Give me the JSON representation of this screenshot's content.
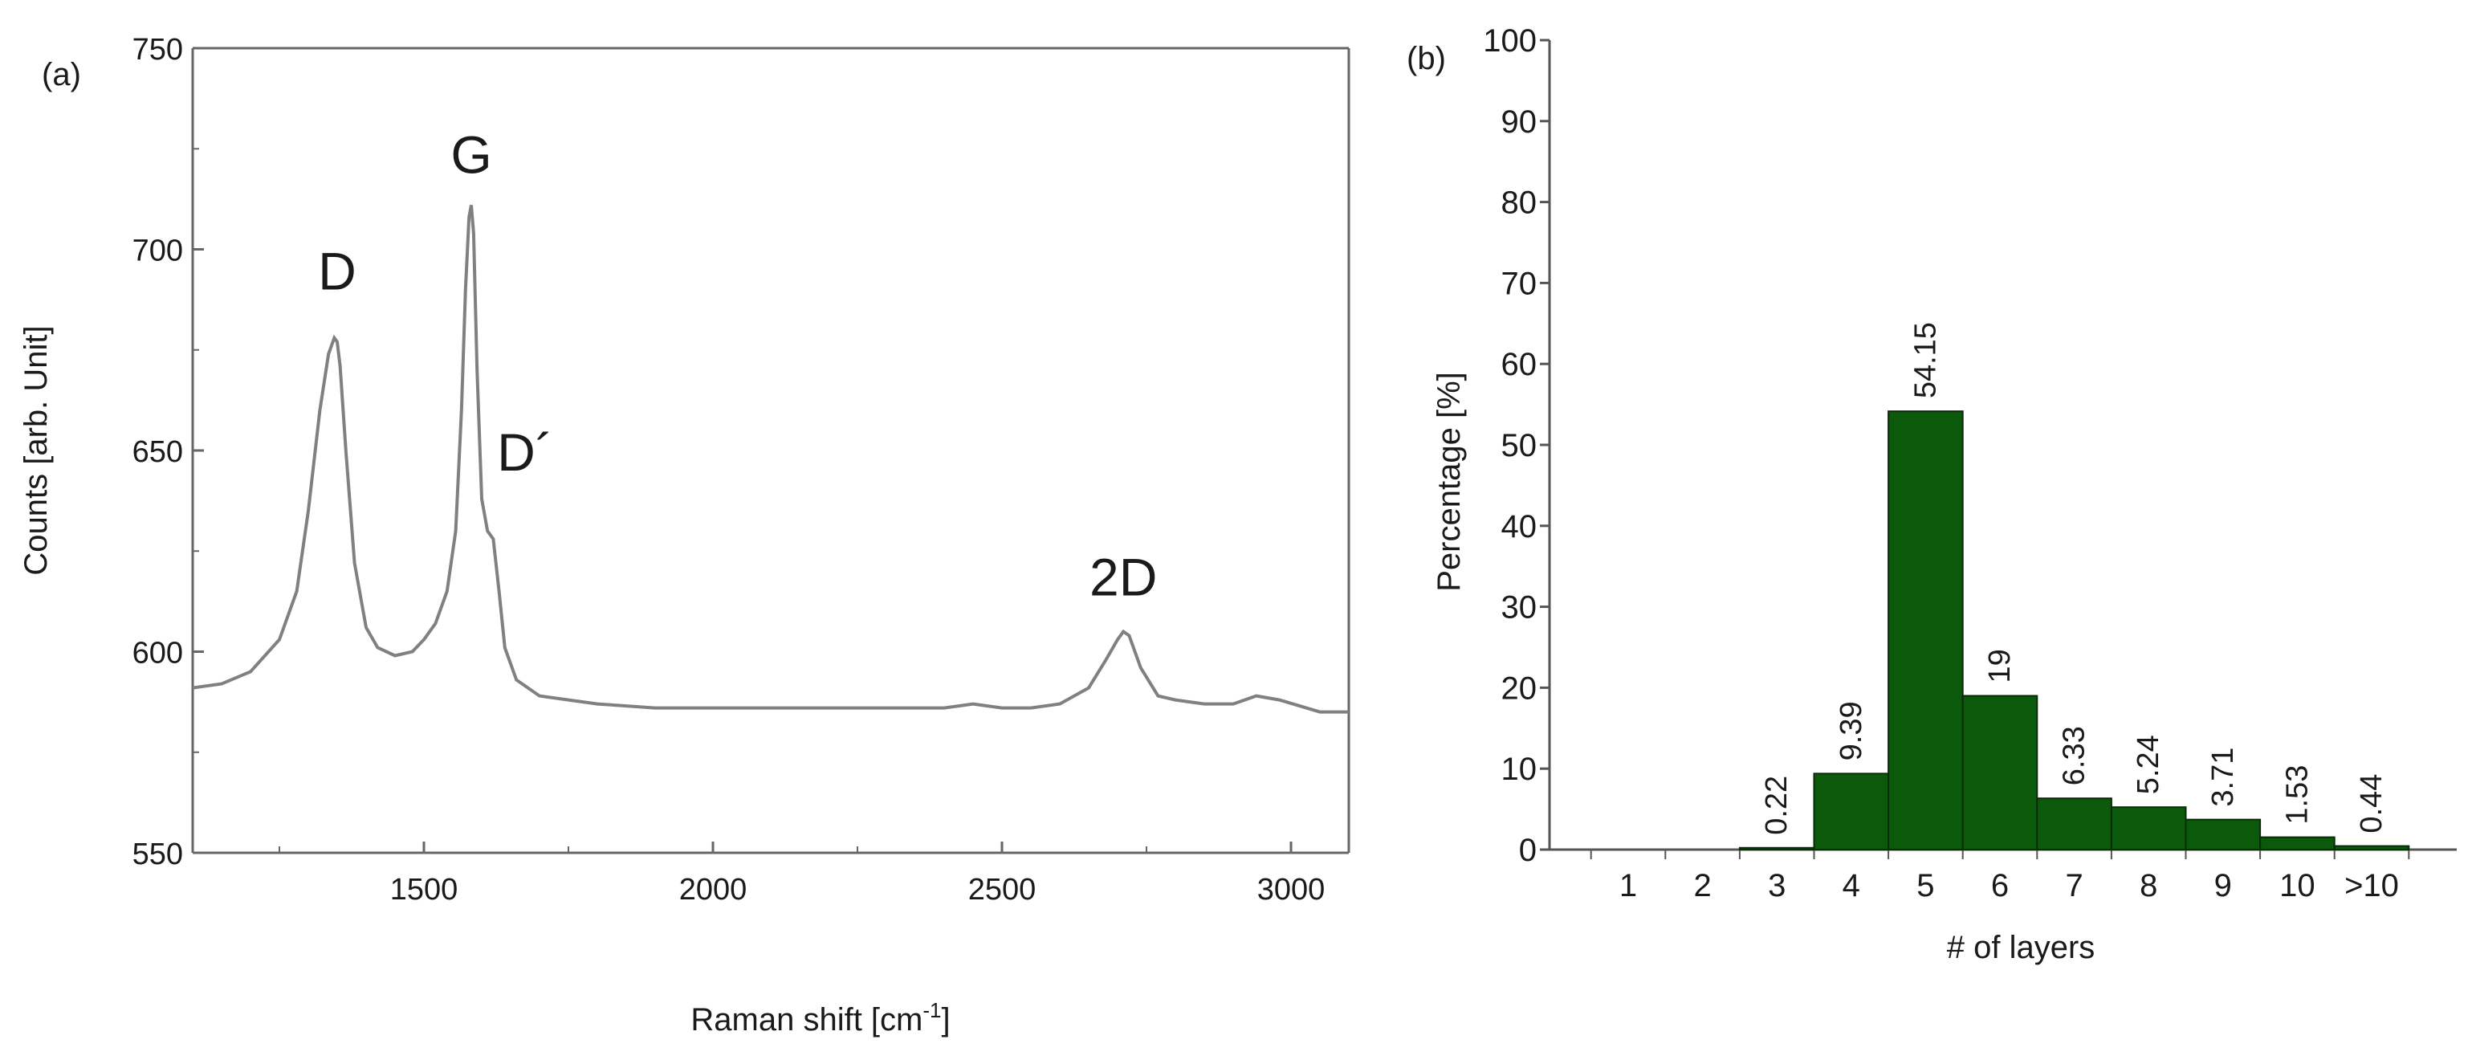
{
  "chart_data": [
    {
      "panel_label": "(a)",
      "type": "line",
      "xlabel": "Raman shift [cm",
      "xlabel_superscript": "-1",
      "xlabel_suffix": "]",
      "ylabel": "Counts [arb. Unit]",
      "xlim": [
        1100,
        3100
      ],
      "ylim": [
        550,
        750
      ],
      "x_ticks": [
        1500,
        2000,
        2500,
        3000
      ],
      "y_ticks": [
        550,
        600,
        650,
        700,
        750
      ],
      "grid": false,
      "line_color": "#808080",
      "series": [
        {
          "x": [
            1100,
            1150,
            1200,
            1250,
            1280,
            1300,
            1320,
            1335,
            1345,
            1350,
            1355,
            1365,
            1380,
            1400,
            1420,
            1450,
            1480,
            1500,
            1520,
            1540,
            1555,
            1565,
            1572,
            1578,
            1582,
            1586,
            1592,
            1600,
            1610,
            1620,
            1630,
            1640,
            1660,
            1700,
            1750,
            1800,
            1900,
            2000,
            2100,
            2200,
            2300,
            2400,
            2450,
            2500,
            2550,
            2600,
            2650,
            2680,
            2700,
            2710,
            2720,
            2740,
            2770,
            2800,
            2850,
            2900,
            2940,
            2980,
            3050,
            3100
          ],
          "y": [
            591,
            592,
            595,
            603,
            615,
            635,
            660,
            674,
            678,
            677,
            671,
            650,
            622,
            606,
            601,
            599,
            600,
            603,
            607,
            615,
            630,
            660,
            690,
            708,
            711,
            704,
            670,
            638,
            630,
            628,
            615,
            601,
            593,
            589,
            588,
            587,
            586,
            586,
            586,
            586,
            586,
            586,
            587,
            586,
            586,
            587,
            591,
            598,
            603,
            605,
            604,
            596,
            589,
            588,
            587,
            587,
            589,
            588,
            585,
            585
          ]
        }
      ],
      "annotations": [
        {
          "text": "D",
          "x": 1350,
          "y": 690
        },
        {
          "text": "G",
          "x": 1582,
          "y": 719
        },
        {
          "text": "D´",
          "x": 1675,
          "y": 645
        },
        {
          "text": "2D",
          "x": 2710,
          "y": 614
        }
      ]
    },
    {
      "panel_label": "(b)",
      "type": "bar",
      "xlabel": "# of layers",
      "ylabel": "Percentage [%]",
      "categories": [
        "1",
        "2",
        "3",
        "4",
        "5",
        "6",
        "7",
        "8",
        "9",
        "10",
        ">10"
      ],
      "values": [
        0,
        0,
        0.22,
        9.39,
        54.15,
        19,
        6.33,
        5.24,
        3.71,
        1.53,
        0.44
      ],
      "data_labels": [
        "",
        "",
        "0.22",
        "9.39",
        "54.15",
        "19",
        "6.33",
        "5.24",
        "3.71",
        "1.53",
        "0.44"
      ],
      "ylim": [
        0,
        100
      ],
      "y_ticks": [
        0,
        10,
        20,
        30,
        40,
        50,
        60,
        70,
        80,
        90,
        100
      ],
      "grid": false,
      "bar_color": "#0b5a0b"
    }
  ]
}
